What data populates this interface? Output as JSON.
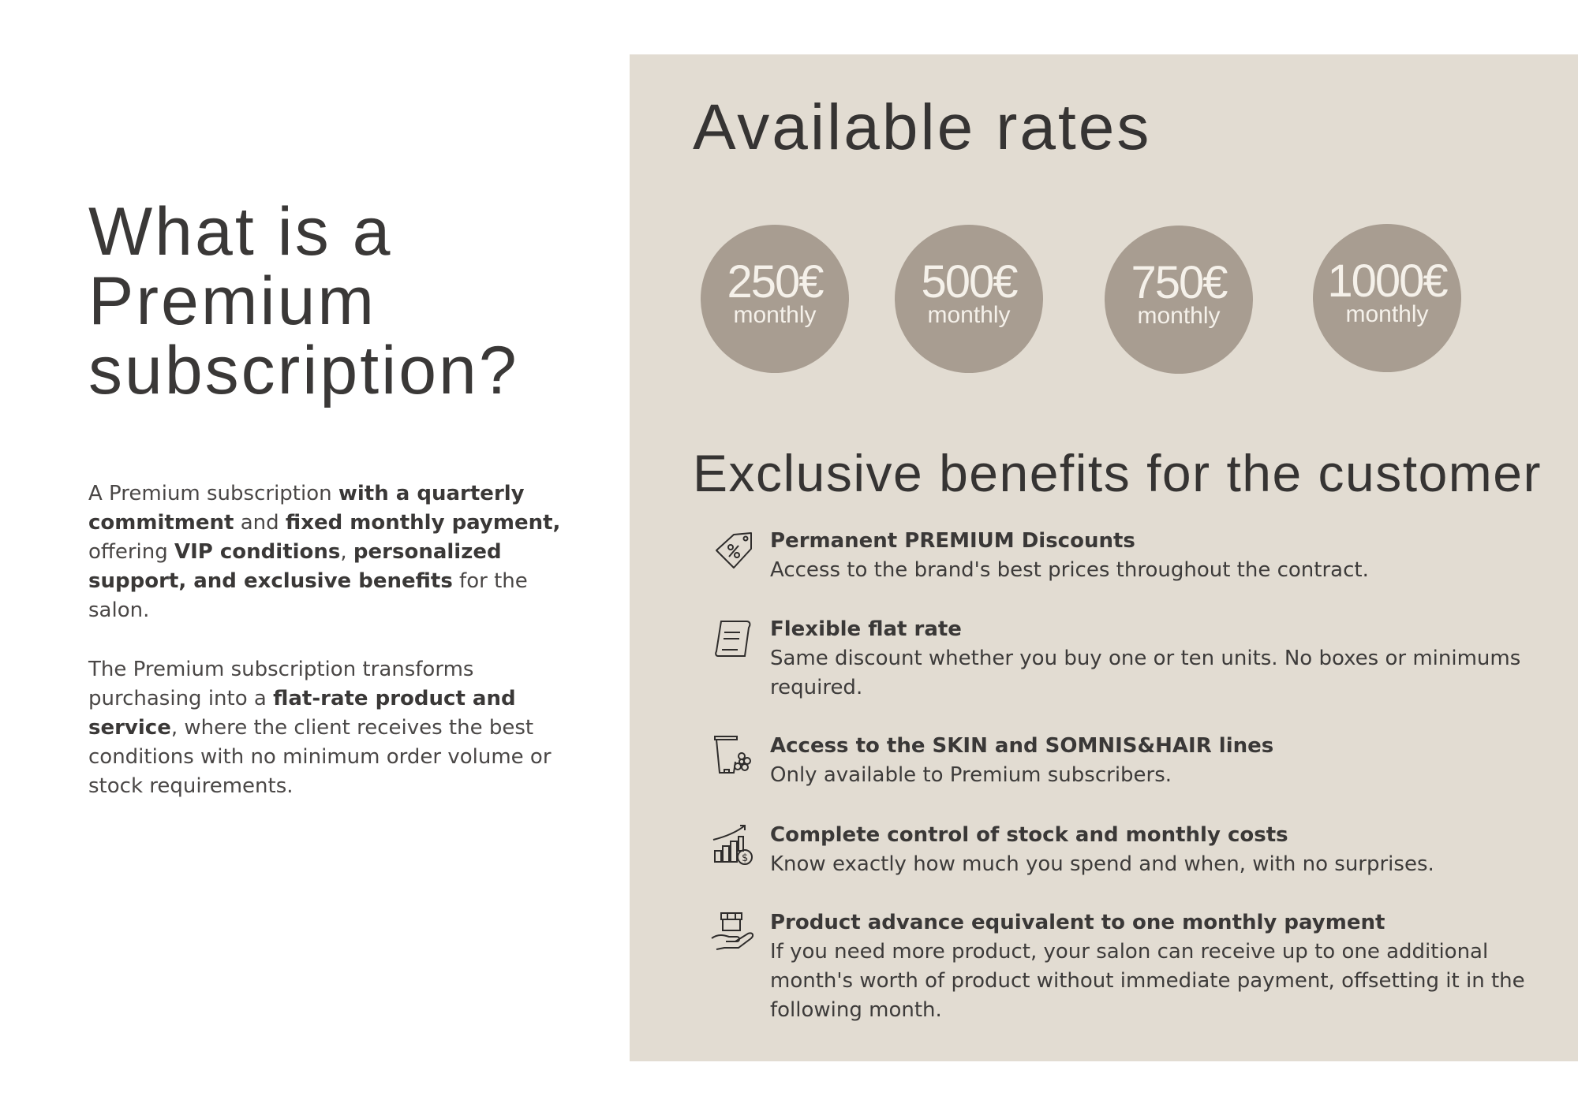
{
  "left": {
    "title_lines": [
      "What is a",
      "Premium",
      "subscription?"
    ],
    "paragraph1": [
      {
        "text": "A Premium subscription ",
        "bold": false
      },
      {
        "text": "with a quarterly commitment",
        "bold": true
      },
      {
        "text": " and ",
        "bold": false
      },
      {
        "text": "fixed monthly payment,",
        "bold": true
      },
      {
        "text": " offering ",
        "bold": false
      },
      {
        "text": "VIP conditions",
        "bold": true
      },
      {
        "text": ", ",
        "bold": false
      },
      {
        "text": "personalized support, and exclusive benefits",
        "bold": true
      },
      {
        "text": " for the salon.",
        "bold": false
      }
    ],
    "paragraph2": [
      {
        "text": "The Premium subscription transforms purchasing into a ",
        "bold": false
      },
      {
        "text": "flat-rate product and service",
        "bold": true
      },
      {
        "text": ", where the client receives the best conditions with no minimum order volume or stock requirements.",
        "bold": false
      }
    ]
  },
  "rates": {
    "title": "Available rates",
    "items": [
      {
        "amount": "250€",
        "period": "monthly"
      },
      {
        "amount": "500€",
        "period": "monthly"
      },
      {
        "amount": "750€",
        "period": "monthly"
      },
      {
        "amount": "1000€",
        "period": "monthly"
      }
    ]
  },
  "benefits": {
    "title": "Exclusive benefits for the customer",
    "items": [
      {
        "icon": "discount-tag-icon",
        "title": "Permanent PREMIUM Discounts",
        "desc": "Access to the brand's best prices throughout the contract."
      },
      {
        "icon": "scroll-document-icon",
        "title": "Flexible flat rate",
        "desc": "Same discount whether you buy one or ten units. No boxes or minimums required."
      },
      {
        "icon": "cosmetic-tube-flower-icon",
        "title": "Access to the SKIN and SOMNIS&HAIR lines",
        "desc": "Only available to Premium subscribers."
      },
      {
        "icon": "growth-chart-dollar-icon",
        "title": "Complete control of stock and monthly costs",
        "desc": "Know exactly how much you spend and when, with no surprises."
      },
      {
        "icon": "hand-box-icon",
        "title": "Product advance equivalent to one monthly payment",
        "desc": "If you need more product, your salon can receive up to one additional month's worth of product without immediate payment, offsetting it in the following month."
      }
    ]
  },
  "colors": {
    "panel": "#e2dcd2",
    "circle": "#a89d91",
    "text": "#3d3b3a"
  }
}
